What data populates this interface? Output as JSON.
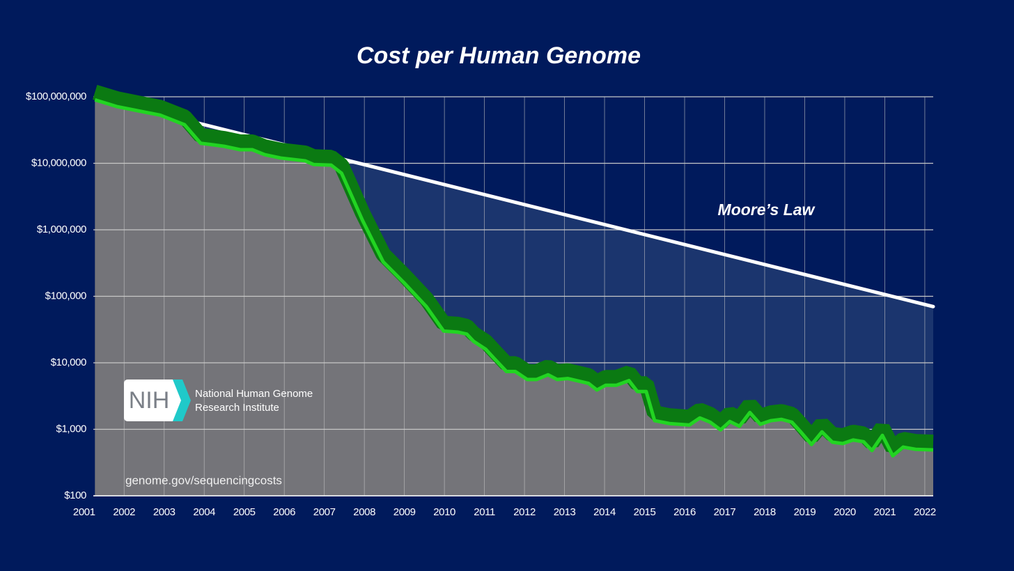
{
  "chart_data": {
    "type": "area",
    "title": "Cost per Human Genome",
    "ylog": true,
    "grid": true,
    "color": "#22d422",
    "band_color": "#0b7a12",
    "area_color": "#747479",
    "fill_between_color": "#1b356e",
    "x": [
      2001.27,
      2001.83,
      2002.5,
      2002.9,
      2003.51,
      2003.91,
      2004.21,
      2004.5,
      2004.9,
      2005.2,
      2005.51,
      2005.91,
      2006.52,
      2006.73,
      2007.17,
      2007.43,
      2007.6,
      2007.95,
      2008.47,
      2008.99,
      2009.55,
      2009.98,
      2010.33,
      2010.56,
      2010.73,
      2011.03,
      2011.25,
      2011.55,
      2011.77,
      2012.07,
      2012.3,
      2012.59,
      2012.82,
      2013.08,
      2013.6,
      2013.81,
      2014.03,
      2014.3,
      2014.61,
      2014.82,
      2015.04,
      2015.25,
      2015.62,
      2016.12,
      2016.38,
      2016.64,
      2016.9,
      2017.13,
      2017.37,
      2017.63,
      2017.89,
      2018.16,
      2018.42,
      2018.68,
      2018.9,
      2019.17,
      2019.43,
      2019.69,
      2019.95,
      2020.21,
      2020.47,
      2020.68,
      2020.94,
      2021.2,
      2021.46,
      2021.77,
      2022.21
    ],
    "values": [
      90000000,
      71000000,
      59000000,
      53000000,
      38000000,
      20000000,
      19000000,
      18000000,
      16000000,
      16000000,
      13500000,
      12000000,
      10900000,
      9600000,
      9400000,
      7100000,
      4200000,
      1400000,
      330000,
      160000,
      70000,
      30000,
      29000,
      27000,
      21000,
      16000,
      11500,
      7400,
      7400,
      5600,
      5600,
      6600,
      5600,
      5800,
      4900,
      3900,
      4600,
      4600,
      5400,
      3700,
      3700,
      1350,
      1220,
      1160,
      1480,
      1280,
      980,
      1310,
      1110,
      1790,
      1190,
      1350,
      1410,
      1280,
      915,
      590,
      915,
      640,
      610,
      690,
      650,
      480,
      810,
      400,
      540,
      500,
      490
    ],
    "moores_law": {
      "name": "Moore’s Law",
      "color": "#ffffff",
      "x": [
        2003.86,
        2022.21
      ],
      "values": [
        40000000,
        70000
      ]
    },
    "xlim": [
      2001.23,
      2022.21
    ],
    "xticks": [
      2001,
      2002,
      2003,
      2004,
      2005,
      2006,
      2007,
      2008,
      2009,
      2010,
      2011,
      2012,
      2013,
      2014,
      2015,
      2016,
      2017,
      2018,
      2019,
      2020,
      2021,
      2022
    ],
    "ylim": [
      100,
      100000000
    ],
    "yticks": [
      {
        "value": 100,
        "label": "$100"
      },
      {
        "value": 1000,
        "label": "$1,000"
      },
      {
        "value": 10000,
        "label": "$10,000"
      },
      {
        "value": 100000,
        "label": "$100,000"
      },
      {
        "value": 1000000,
        "label": "$1,000,000"
      },
      {
        "value": 10000000,
        "label": "$10,000,000"
      },
      {
        "value": 100000000,
        "label": "$100,000,000"
      }
    ],
    "logo_text": "NIH",
    "logo_caption": [
      "National Human Genome",
      "Research Institute"
    ],
    "source": "genome.gov/sequencingcosts"
  }
}
